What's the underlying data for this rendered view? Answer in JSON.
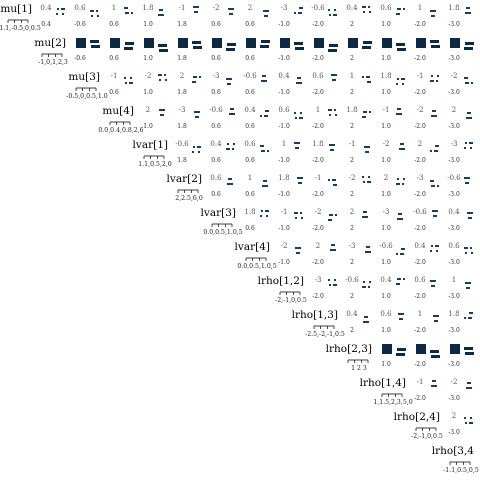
{
  "chart_data": {
    "type": "scatter-matrix",
    "title": "",
    "variables": [
      "mu[1]",
      "mu[2]",
      "mu[3]",
      "mu[4]",
      "lvar[1]",
      "lvar[2]",
      "lvar[3]",
      "lvar[4]",
      "lrho[1,2]",
      "lrho[1,3]",
      "lrho[2,3]",
      "lrho[1,4]",
      "lrho[2,4]",
      "lrho[3,4"
    ],
    "diagonal_axis_labels": [
      "-1.1,-0.5,0,0.5",
      "-1,0,1,2,3",
      "-0.5,0,0.5,1.0",
      "0.0,0.4,0.8,2,6",
      "1.1,0.5,2,0",
      "2,2.5,6,0",
      "0.0,0.5,1.0,5",
      "0.0,0.5,1.0,5",
      "-2,-1,0,0.5",
      "-2.5,-2,-1,0.5",
      "1 2 3",
      "1,1.5,2,3,5,0",
      "-2,-1,0,0.5",
      "-1.1,0.5,0,5"
    ],
    "column_tick_values": [
      "0.4",
      "-0.6",
      "0.6",
      "1.0",
      "1.8",
      "0.6",
      "0.6",
      "-1.0",
      "-2.0",
      "2",
      "1.0",
      "-2.0",
      "-3.0"
    ],
    "row_tick_values": [
      "-0.6",
      "1.0",
      "1.8",
      "0.6",
      "-1.0",
      "2",
      "1.0",
      "-2.0",
      "2",
      "-1.0",
      "-2.0"
    ],
    "glyph_values": [
      -0.6,
      0.4,
      0.6,
      1.0,
      1.8,
      -1.0,
      -2.0,
      2,
      -3.0
    ],
    "accent_colors": {
      "point": "#1f3a5c",
      "dense": "#0f2945",
      "text": "#555555"
    },
    "grid": false,
    "legend": "none"
  }
}
